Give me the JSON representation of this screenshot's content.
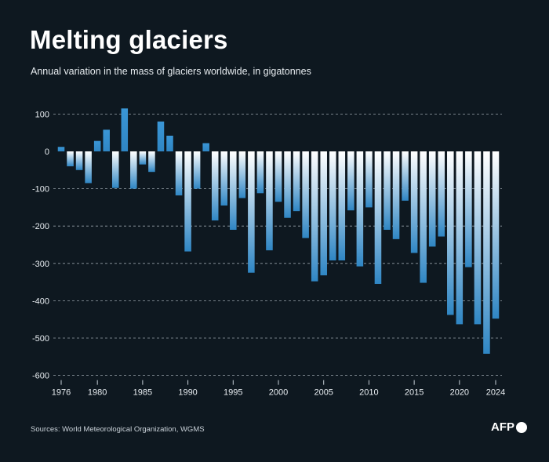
{
  "header": {
    "title": "Melting glaciers",
    "subtitle": "Annual variation in the mass of glaciers worldwide, in gigatonnes"
  },
  "footer": {
    "source": "Sources: World Meteorological Organization, WGMS",
    "logo_text": "AFP"
  },
  "colors": {
    "background": "#0e1820",
    "bar_top": "#ffffff",
    "bar_bottom": "#2f86c4"
  },
  "chart_data": {
    "type": "bar",
    "title": "Melting glaciers",
    "subtitle": "Annual variation in the mass of glaciers worldwide, in gigatonnes",
    "xlabel": "",
    "ylabel": "",
    "x": [
      1976,
      1977,
      1978,
      1979,
      1980,
      1981,
      1982,
      1983,
      1984,
      1985,
      1986,
      1987,
      1988,
      1989,
      1990,
      1991,
      1992,
      1993,
      1994,
      1995,
      1996,
      1997,
      1998,
      1999,
      2000,
      2001,
      2002,
      2003,
      2004,
      2005,
      2006,
      2007,
      2008,
      2009,
      2010,
      2011,
      2012,
      2013,
      2014,
      2015,
      2016,
      2017,
      2018,
      2019,
      2020,
      2021,
      2022,
      2023,
      2024
    ],
    "values": [
      12,
      -40,
      -50,
      -85,
      28,
      58,
      -98,
      115,
      -100,
      -35,
      -55,
      80,
      42,
      -118,
      -268,
      -100,
      22,
      -185,
      -145,
      -210,
      -125,
      -325,
      -112,
      -265,
      -135,
      -178,
      -160,
      -232,
      -348,
      -332,
      -292,
      -292,
      -158,
      -308,
      -150,
      -355,
      -210,
      -235,
      -132,
      -272,
      -352,
      -255,
      -228,
      -438,
      -463,
      -310,
      -463,
      -542,
      -448
    ],
    "x_tick_labels": [
      "1976",
      "1980",
      "1985",
      "1990",
      "1995",
      "2000",
      "2005",
      "2010",
      "2015",
      "2020",
      "2024"
    ],
    "x_tick_values": [
      1976,
      1980,
      1985,
      1990,
      1995,
      2000,
      2005,
      2010,
      2015,
      2020,
      2024
    ],
    "y_tick_labels": [
      "100",
      "0",
      "-100",
      "-200",
      "-300",
      "-400",
      "-500",
      "-600"
    ],
    "y_tick_values": [
      100,
      0,
      -100,
      -200,
      -300,
      -400,
      -500,
      -600
    ],
    "ylim": [
      -600,
      100
    ],
    "grid": "dashed horizontal at y-ticks",
    "legend": "none"
  }
}
